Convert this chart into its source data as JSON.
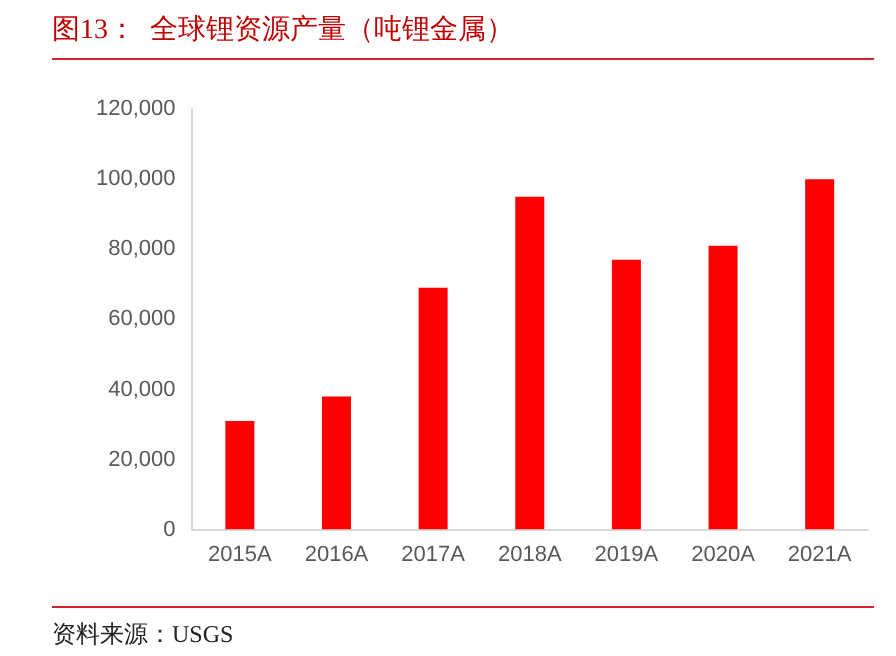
{
  "chart_data": {
    "type": "bar",
    "title": "图13：  全球锂资源产量（吨锂金属）",
    "categories": [
      "2015A",
      "2016A",
      "2017A",
      "2018A",
      "2019A",
      "2020A",
      "2021A"
    ],
    "values": [
      31000,
      38000,
      69000,
      95000,
      77000,
      81000,
      100000
    ],
    "color": "#ff0000",
    "ylim": [
      0,
      120000
    ],
    "yticks": [
      0,
      {
        "value": 20000,
        "label": "20,000"
      },
      {
        "value": 40000,
        "label": "40,000"
      },
      {
        "value": 60000,
        "label": "60,000"
      },
      {
        "value": 80000,
        "label": "80,000"
      },
      {
        "value": 100000,
        "label": "100,000"
      },
      {
        "value": 120000,
        "label": "120,000"
      }
    ],
    "grid": false,
    "legend": false,
    "annotations": [
      "资料来源：USGS"
    ]
  }
}
